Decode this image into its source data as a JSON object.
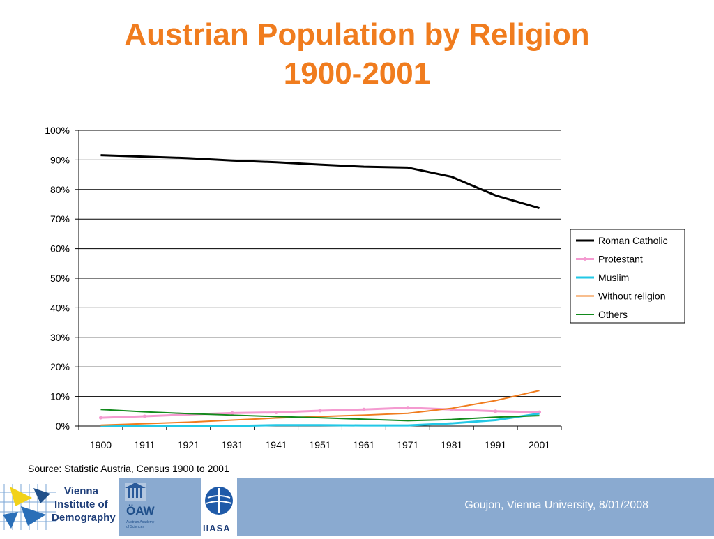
{
  "title_line1": "Austrian Population by Religion",
  "title_line2": "1900-2001",
  "source": "Source: Statistic Austria, Census 1900 to 2001",
  "footer_text": "Goujon,  Vienna University, 8/01/2008",
  "logos": {
    "vid_line1": "Vienna",
    "vid_line2": "Institute of",
    "vid_line3": "Demography",
    "oaw": "ÖAW",
    "oaw_small1": "Austrian Academy",
    "oaw_small2": "of Sciences",
    "iiasa": "IIASA"
  },
  "chart_data": {
    "type": "line",
    "x": [
      "1900",
      "1911",
      "1921",
      "1931",
      "1941",
      "1951",
      "1961",
      "1971",
      "1981",
      "1991",
      "2001"
    ],
    "yticks": [
      "0%",
      "10%",
      "20%",
      "30%",
      "40%",
      "50%",
      "60%",
      "70%",
      "80%",
      "90%",
      "100%"
    ],
    "ylim": [
      0,
      100
    ],
    "grid": true,
    "legend_position": "right",
    "series": [
      {
        "name": "Roman Catholic",
        "color": "#000000",
        "width": 3,
        "markers": false,
        "values": [
          91.6,
          91.1,
          90.6,
          89.8,
          89.2,
          88.4,
          87.7,
          87.4,
          84.3,
          78.0,
          73.7
        ]
      },
      {
        "name": "Protestant",
        "color": "#f49ad0",
        "width": 3,
        "markers": true,
        "values": [
          2.8,
          3.3,
          3.9,
          4.4,
          4.6,
          5.2,
          5.6,
          6.2,
          5.6,
          5.0,
          4.7
        ]
      },
      {
        "name": "Muslim",
        "color": "#22c8e6",
        "width": 3,
        "markers": false,
        "values": [
          0.0,
          0.0,
          0.0,
          0.0,
          0.3,
          0.3,
          0.2,
          0.2,
          0.9,
          2.0,
          4.2
        ]
      },
      {
        "name": "Without religion",
        "color": "#f07c1e",
        "width": 2,
        "markers": false,
        "values": [
          0.3,
          0.8,
          1.3,
          2.0,
          2.7,
          3.2,
          3.7,
          4.3,
          6.0,
          8.6,
          12.0
        ]
      },
      {
        "name": "Others",
        "color": "#128a1c",
        "width": 2,
        "markers": false,
        "values": [
          5.6,
          4.8,
          4.2,
          3.7,
          3.2,
          2.8,
          2.3,
          1.8,
          2.2,
          3.0,
          3.5
        ]
      }
    ]
  }
}
